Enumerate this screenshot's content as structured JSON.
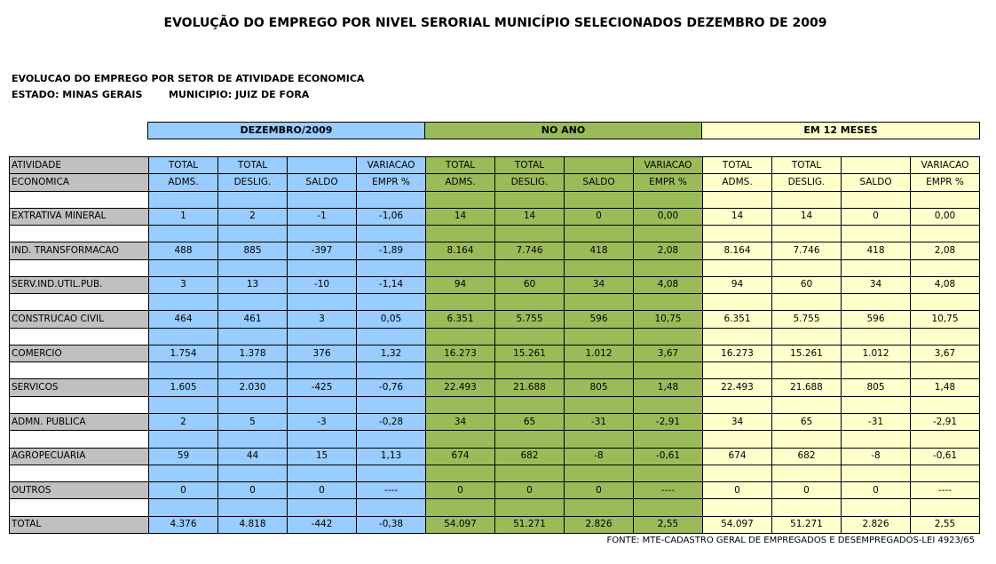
{
  "title": "EVOLUÇÃO DO EMPREGO POR NIVEL SERORIAL MUNICÍPIO SELECIONADOS DEZEMBRO DE 2009",
  "subtitle": "EVOLUCAO DO EMPREGO POR SETOR DE ATIVIDADE ECONOMICA",
  "estado": "ESTADO: MINAS GERAIS",
  "municipio": "MUNICIPIO: JUIZ DE FORA",
  "groups": [
    "DEZEMBRO/2009",
    "NO ANO",
    "EM 12 MESES"
  ],
  "colors": {
    "blue": "#99ccff",
    "green": "#9bbb59",
    "yellow": "#ffffcc",
    "gray": "#c0c0c0"
  },
  "header_row1": [
    "ATIVIDADE",
    "TOTAL",
    "TOTAL",
    "",
    "VARIACAO"
  ],
  "header_row2": [
    "ECONOMICA",
    "ADMS.",
    "DESLIG.",
    "SALDO",
    "EMPR %"
  ],
  "rows": [
    {
      "label": "EXTRATIVA MINERAL",
      "values": [
        "1",
        "2",
        "-1",
        "-1,06",
        "14",
        "14",
        "0",
        "0,00",
        "14",
        "14",
        "0",
        "0,00"
      ]
    },
    {
      "label": "IND. TRANSFORMACAO",
      "values": [
        "488",
        "885",
        "-397",
        "-1,89",
        "8.164",
        "7.746",
        "418",
        "2,08",
        "8.164",
        "7.746",
        "418",
        "2,08"
      ]
    },
    {
      "label": "SERV.IND.UTIL.PUB.",
      "values": [
        "3",
        "13",
        "-10",
        "-1,14",
        "94",
        "60",
        "34",
        "4,08",
        "94",
        "60",
        "34",
        "4,08"
      ]
    },
    {
      "label": "CONSTRUCAO CIVIL",
      "values": [
        "464",
        "461",
        "3",
        "0,05",
        "6.351",
        "5.755",
        "596",
        "10,75",
        "6.351",
        "5.755",
        "596",
        "10,75"
      ]
    },
    {
      "label": "COMERCIO",
      "values": [
        "1.754",
        "1.378",
        "376",
        "1,32",
        "16.273",
        "15.261",
        "1.012",
        "3,67",
        "16.273",
        "15.261",
        "1.012",
        "3,67"
      ]
    },
    {
      "label": "SERVICOS",
      "values": [
        "1.605",
        "2.030",
        "-425",
        "-0,76",
        "22.493",
        "21.688",
        "805",
        "1,48",
        "22.493",
        "21.688",
        "805",
        "1,48"
      ]
    },
    {
      "label": "ADMN. PUBLICA",
      "values": [
        "2",
        "5",
        "-3",
        "-0,28",
        "34",
        "65",
        "-31",
        "-2,91",
        "34",
        "65",
        "-31",
        "-2,91"
      ]
    },
    {
      "label": "AGROPECUARIA",
      "values": [
        "59",
        "44",
        "15",
        "1,13",
        "674",
        "682",
        "-8",
        "-0,61",
        "674",
        "682",
        "-8",
        "-0,61"
      ]
    },
    {
      "label": "OUTROS",
      "values": [
        "0",
        "0",
        "0",
        "----",
        "0",
        "0",
        "0",
        "----",
        "0",
        "0",
        "0",
        "----"
      ]
    },
    {
      "label": "TOTAL",
      "values": [
        "4.376",
        "4.818",
        "-442",
        "-0,38",
        "54.097",
        "51.271",
        "2.826",
        "2,55",
        "54.097",
        "51.271",
        "2.826",
        "2,55"
      ]
    }
  ],
  "fonte": "FONTE: MTE-CADASTRO GERAL DE EMPREGADOS E DESEMPREGADOS-LEI 4923/65"
}
